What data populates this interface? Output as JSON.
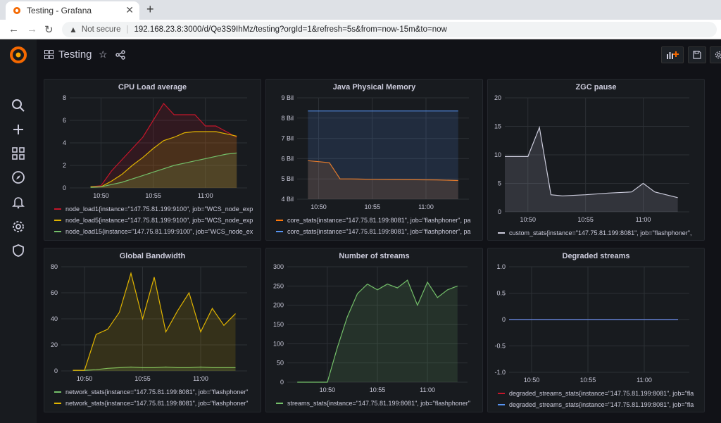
{
  "browser": {
    "tab_title": "Testing - Grafana",
    "new_tab": "+",
    "not_secure": "Not secure",
    "url": "192.168.23.8:3000/d/Qe3S9IhMz/testing?orgId=1&refresh=5s&from=now-15m&to=now"
  },
  "dashboard": {
    "title": "Testing"
  },
  "panels": [
    {
      "id": "cpu",
      "title": "CPU Load average",
      "y_ticks": [
        "8",
        "6",
        "4",
        "2",
        "0"
      ],
      "x_ticks": [
        "10:50",
        "10:55",
        "11:00"
      ],
      "chart_data": {
        "type": "area",
        "x": [
          "10:49",
          "10:50",
          "10:51",
          "10:52",
          "10:53",
          "10:54",
          "10:55",
          "10:56",
          "10:57",
          "10:58",
          "10:59",
          "11:00",
          "11:01",
          "11:02",
          "11:03"
        ],
        "ylim": [
          0,
          8
        ],
        "series": [
          {
            "name": "node_load1{instance=\"147.75.81.199:9100\", job=\"WCS_node_exp",
            "color": "#c4162a",
            "values": [
              0.1,
              0.2,
              1.5,
              2.5,
              3.5,
              4.5,
              6,
              7.5,
              6.5,
              6.5,
              6.5,
              5.5,
              5.5,
              5,
              4.5
            ]
          },
          {
            "name": "node_load5{instance=\"147.75.81.199:9100\", job=\"WCS_node_exp",
            "color": "#e0b400",
            "values": [
              0.1,
              0.1,
              0.6,
              1.2,
              2,
              2.7,
              3.5,
              4.2,
              4.5,
              4.9,
              5,
              5,
              5,
              4.8,
              4.6
            ]
          },
          {
            "name": "node_load15{instance=\"147.75.81.199:9100\", job=\"WCS_node_ex",
            "color": "#73bf69",
            "values": [
              0.05,
              0.1,
              0.3,
              0.5,
              0.8,
              1.1,
              1.4,
              1.7,
              2,
              2.2,
              2.4,
              2.6,
              2.8,
              3,
              3.1
            ]
          }
        ]
      }
    },
    {
      "id": "jvm",
      "title": "Java Physical Memory",
      "y_ticks": [
        "9 Bil",
        "8 Bil",
        "7 Bil",
        "6 Bil",
        "5 Bil",
        "4 Bil"
      ],
      "x_ticks": [
        "10:50",
        "10:55",
        "11:00"
      ],
      "chart_data": {
        "type": "area",
        "x": [
          "10:49",
          "10:50",
          "10:51",
          "10:52",
          "10:53",
          "10:55",
          "10:57",
          "10:59",
          "11:01",
          "11:03"
        ],
        "ylim": [
          4,
          9
        ],
        "series": [
          {
            "name": "core_stats{instance=\"147.75.81.199:8081\", job=\"flashphoner\", pa",
            "color": "#ff780a",
            "values": [
              5.9,
              5.85,
              5.8,
              5.0,
              5.0,
              4.98,
              4.97,
              4.96,
              4.95,
              4.92
            ]
          },
          {
            "name": "core_stats{instance=\"147.75.81.199:8081\", job=\"flashphoner\", pa",
            "color": "#5794f2",
            "values": [
              8.35,
              8.35,
              8.35,
              8.35,
              8.35,
              8.35,
              8.35,
              8.35,
              8.35,
              8.35
            ]
          }
        ]
      }
    },
    {
      "id": "zgc",
      "title": "ZGC pause",
      "y_ticks": [
        "20",
        "15",
        "10",
        "5",
        "0"
      ],
      "x_ticks": [
        "10:50",
        "10:55",
        "11:00"
      ],
      "chart_data": {
        "type": "area",
        "x": [
          "10:48",
          "10:49",
          "10:50",
          "10:51",
          "10:52",
          "10:53",
          "10:55",
          "10:57",
          "10:59",
          "11:00",
          "11:01",
          "11:03"
        ],
        "ylim": [
          0,
          20
        ],
        "series": [
          {
            "name": "custom_stats{instance=\"147.75.81.199:8081\", job=\"flashphoner\",",
            "color": "#ccccdc",
            "values": [
              9.7,
              9.7,
              9.7,
              14.8,
              3,
              2.8,
              3,
              3.3,
              3.5,
              5,
              3.5,
              2.5
            ]
          }
        ]
      }
    },
    {
      "id": "bw",
      "title": "Global Bandwidth",
      "y_ticks": [
        "80",
        "60",
        "40",
        "20",
        "0"
      ],
      "x_ticks": [
        "10:50",
        "10:55",
        "11:00"
      ],
      "chart_data": {
        "type": "area",
        "x": [
          "10:49",
          "10:50",
          "10:51",
          "10:52",
          "10:53",
          "10:54",
          "10:55",
          "10:56",
          "10:57",
          "10:58",
          "10:59",
          "11:00",
          "11:01",
          "11:02",
          "11:03"
        ],
        "ylim": [
          0,
          80
        ],
        "series": [
          {
            "name": "network_stats{instance=\"147.75.81.199:8081\", job=\"flashphoner\"",
            "color": "#73bf69",
            "values": [
              0.5,
              0.5,
              1,
              2,
              2.5,
              3,
              2.5,
              2.5,
              3,
              2.5,
              2.5,
              3,
              2.5,
              2.5,
              2.5
            ]
          },
          {
            "name": "network_stats{instance=\"147.75.81.199:8081\", job=\"flashphoner\"",
            "color": "#e0b400",
            "values": [
              0.5,
              0.5,
              28,
              32,
              45,
              75,
              40,
              72,
              30,
              46,
              60,
              30,
              48,
              35,
              44
            ]
          }
        ]
      }
    },
    {
      "id": "streams",
      "title": "Number of streams",
      "y_ticks": [
        "300",
        "250",
        "200",
        "150",
        "100",
        "50",
        "0"
      ],
      "x_ticks": [
        "10:50",
        "10:55",
        "11:00"
      ],
      "chart_data": {
        "type": "area",
        "x": [
          "10:47",
          "10:48",
          "10:49",
          "10:50",
          "10:51",
          "10:52",
          "10:53",
          "10:54",
          "10:55",
          "10:56",
          "10:57",
          "10:58",
          "10:59",
          "11:00",
          "11:01",
          "11:02",
          "11:03"
        ],
        "ylim": [
          0,
          300
        ],
        "series": [
          {
            "name": "streams_stats{instance=\"147.75.81.199:8081\", job=\"flashphoner\"",
            "color": "#73bf69",
            "values": [
              0,
              0,
              0,
              0,
              90,
              170,
              230,
              255,
              240,
              255,
              245,
              265,
              200,
              260,
              220,
              240,
              250
            ]
          }
        ]
      }
    },
    {
      "id": "degraded",
      "title": "Degraded streams",
      "y_ticks": [
        "1.0",
        "0.5",
        "0",
        "-0.5",
        "-1.0"
      ],
      "x_ticks": [
        "10:50",
        "10:55",
        "11:00"
      ],
      "chart_data": {
        "type": "line",
        "x": [
          "10:48",
          "11:03"
        ],
        "ylim": [
          -1,
          1
        ],
        "series": [
          {
            "name": "degraded_streams_stats{instance=\"147.75.81.199:8081\", job=\"fla",
            "color": "#c4162a",
            "values": [
              0,
              0
            ]
          },
          {
            "name": "degraded_streams_stats{instance=\"147.75.81.199:8081\", job=\"fla",
            "color": "#5794f2",
            "values": [
              0,
              0
            ]
          }
        ]
      }
    }
  ]
}
